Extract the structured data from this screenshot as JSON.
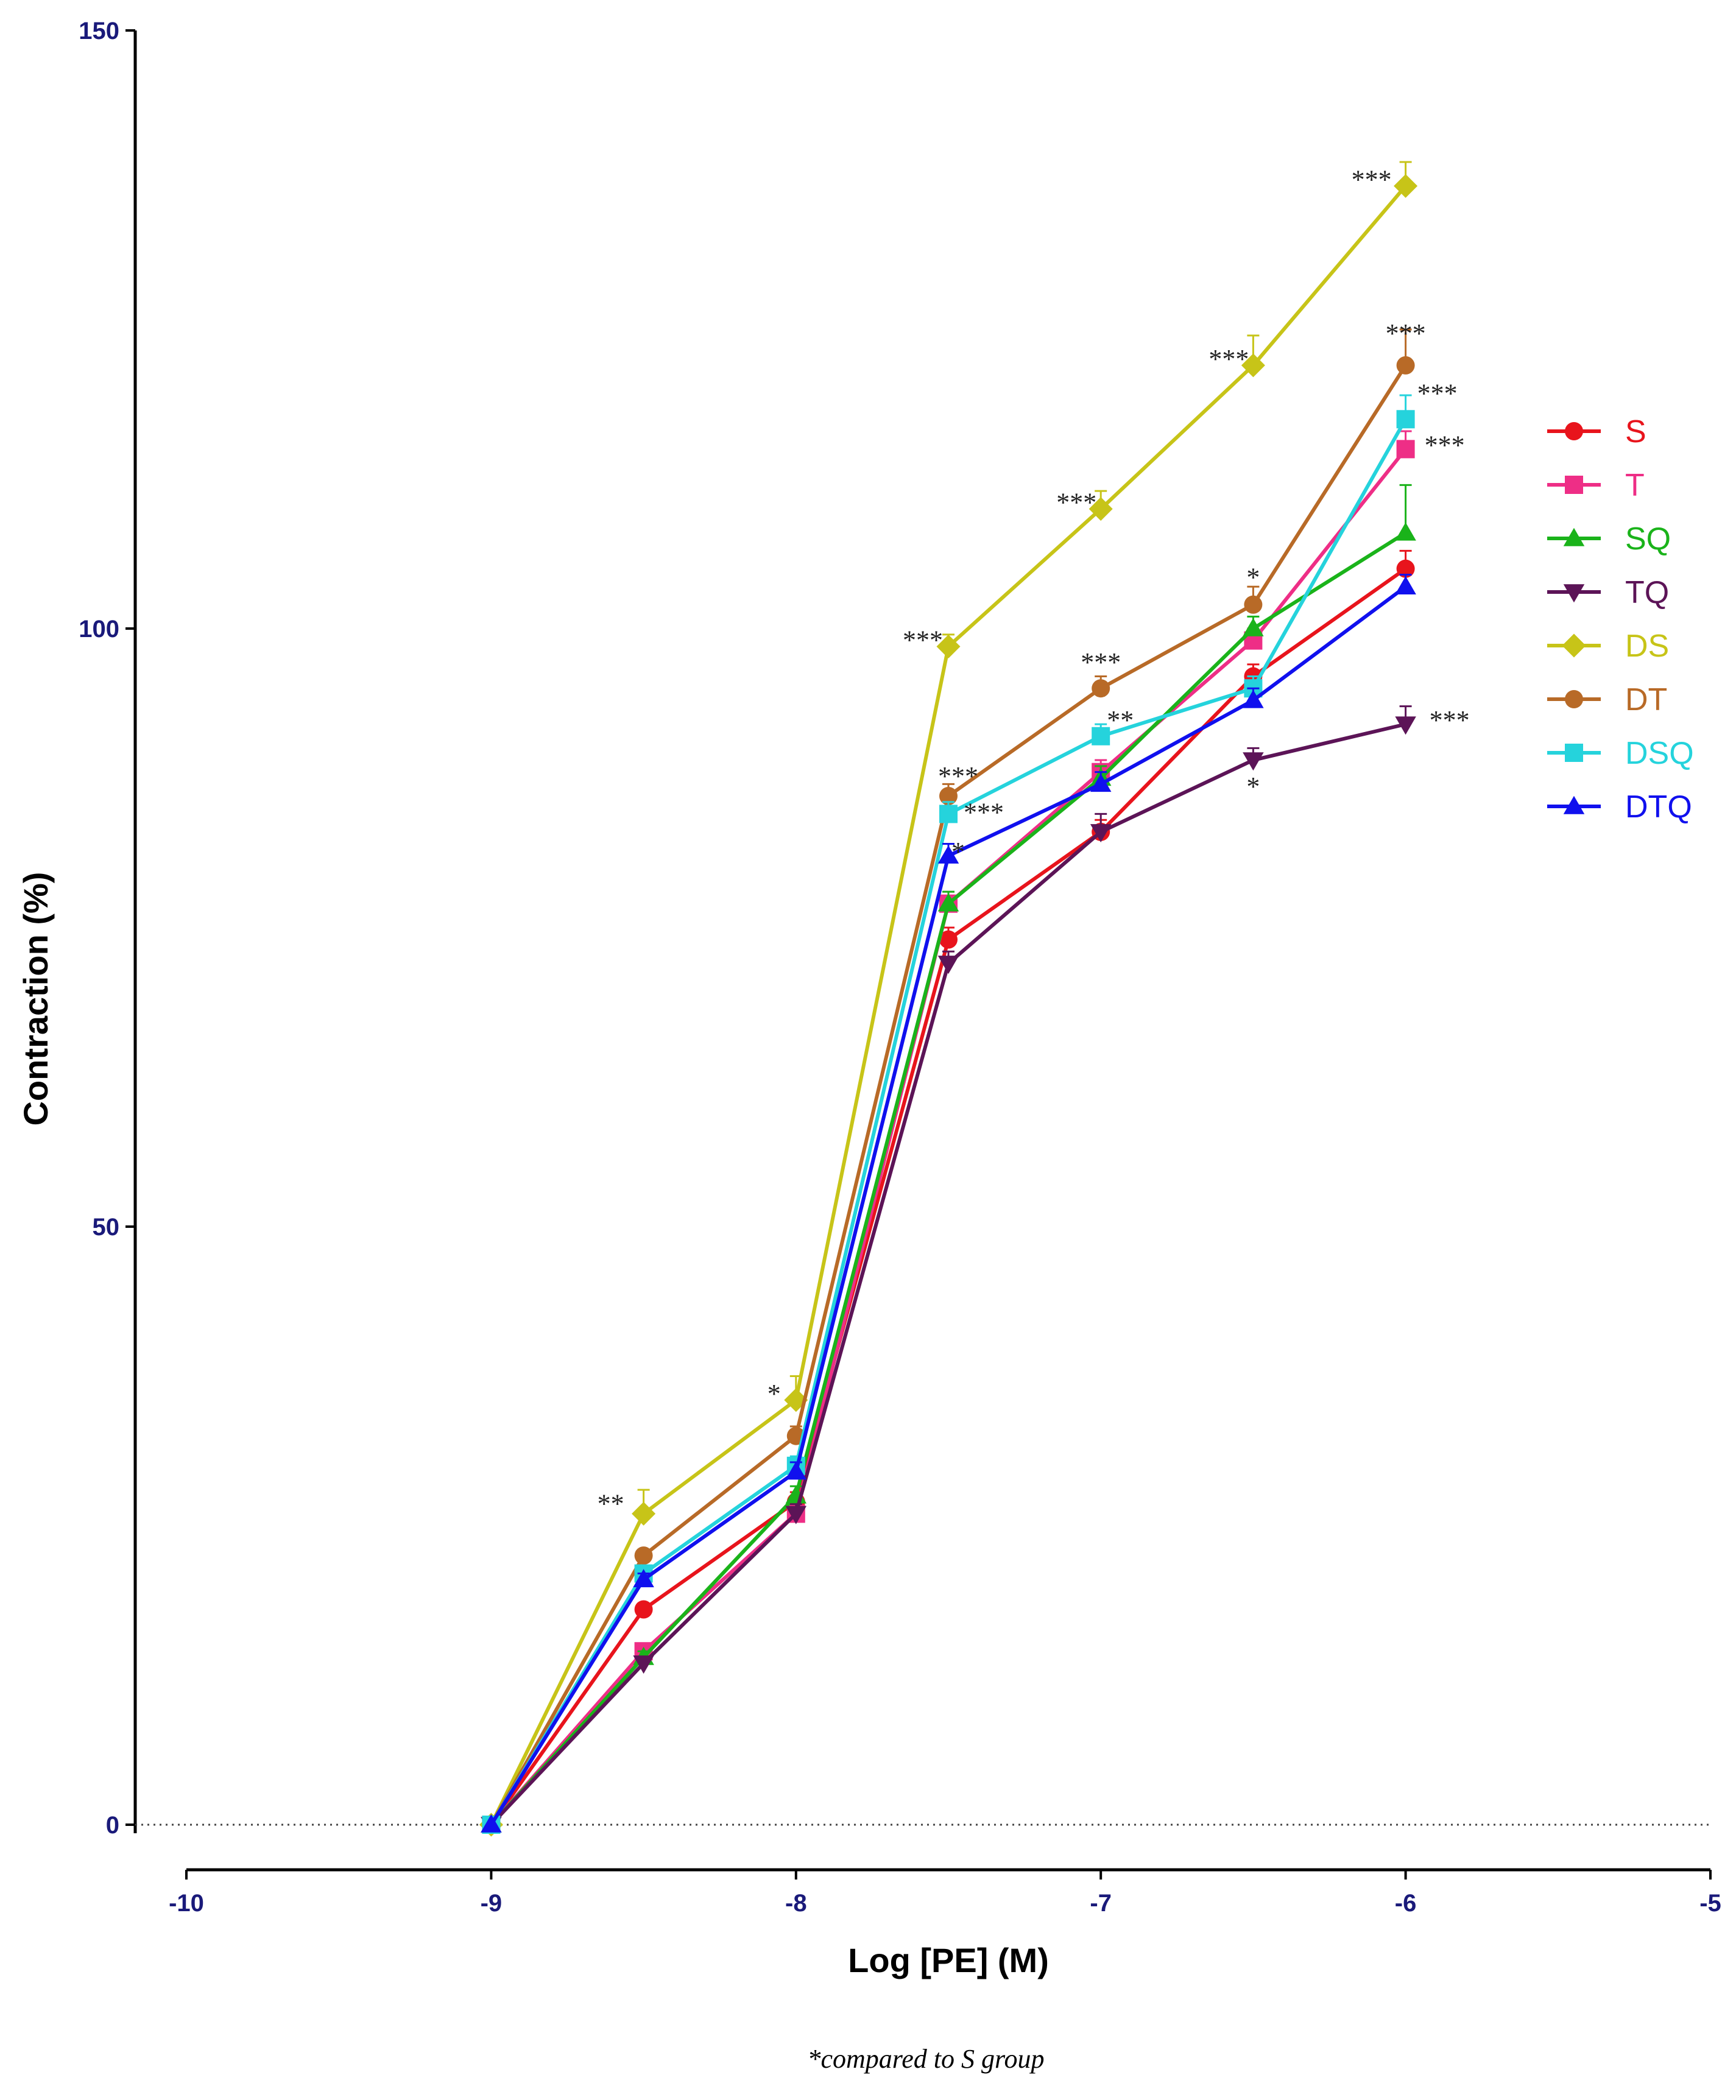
{
  "chart_data": {
    "type": "line",
    "xlabel": "Log [PE] (M)",
    "ylabel": "Contraction (%)",
    "xlim": [
      -10,
      -5
    ],
    "ylim": [
      0,
      150
    ],
    "x_ticks": [
      "-10",
      "-9",
      "-8",
      "-7",
      "-6",
      "-5"
    ],
    "y_ticks": [
      "0",
      "50",
      "100",
      "150"
    ],
    "x": [
      -9,
      -8.5,
      -8,
      -7.5,
      -7,
      -6.5,
      -6
    ],
    "series": [
      {
        "name": "S",
        "color": "#e8141c",
        "marker": "circle",
        "values": [
          0,
          18,
          27,
          74,
          83,
          96,
          105
        ],
        "errors": [
          0,
          0.5,
          0.8,
          1,
          1,
          1,
          1.5
        ]
      },
      {
        "name": "T",
        "color": "#ee2e86",
        "marker": "square",
        "values": [
          0,
          14.5,
          26,
          77,
          88,
          99,
          115
        ],
        "errors": [
          0,
          0.5,
          0.8,
          1,
          1,
          1,
          1.5
        ]
      },
      {
        "name": "SQ",
        "color": "#1ab31a",
        "marker": "triangle-up",
        "values": [
          0,
          14,
          27.5,
          77,
          87.5,
          100,
          108
        ],
        "errors": [
          0,
          0.5,
          0.8,
          1,
          1,
          1,
          4
        ]
      },
      {
        "name": "TQ",
        "color": "#5c1457",
        "marker": "triangle-down",
        "values": [
          0,
          13.5,
          26,
          72,
          83,
          89,
          92
        ],
        "errors": [
          0,
          0.5,
          0.8,
          1,
          1.5,
          1,
          1.5
        ]
      },
      {
        "name": "DS",
        "color": "#c7c418",
        "marker": "diamond",
        "values": [
          0,
          26,
          35.5,
          98.5,
          110,
          122,
          137
        ],
        "errors": [
          0,
          2,
          2,
          1,
          1.5,
          2.5,
          2
        ]
      },
      {
        "name": "DT",
        "color": "#b86a27",
        "marker": "circle",
        "values": [
          0,
          22.5,
          32.5,
          86,
          95,
          102,
          122
        ],
        "errors": [
          0,
          0.5,
          0.8,
          1,
          1,
          1.5,
          3
        ]
      },
      {
        "name": "DSQ",
        "color": "#25d3dc",
        "marker": "square",
        "values": [
          0,
          21,
          30,
          84.5,
          91,
          95,
          117.5
        ],
        "errors": [
          0,
          0.5,
          0.8,
          1,
          1,
          1,
          2
        ]
      },
      {
        "name": "DTQ",
        "color": "#1010ee",
        "marker": "triangle-up",
        "values": [
          0,
          20.5,
          29.5,
          81,
          87,
          94,
          103.5
        ],
        "errors": [
          0,
          0.5,
          0.8,
          1,
          1,
          1,
          1
        ]
      }
    ],
    "annotations": [
      {
        "text": "**",
        "x": -8.5,
        "y": 26
      },
      {
        "text": "*",
        "x": -8,
        "y": 35.5
      },
      {
        "text": "***",
        "x": -7.5,
        "y": 98.5
      },
      {
        "text": "***",
        "x": -7.5,
        "y": 86
      },
      {
        "text": "***",
        "x": -7.5,
        "y": 84.5
      },
      {
        "text": "*",
        "x": -7.5,
        "y": 81
      },
      {
        "text": "***",
        "x": -7,
        "y": 110
      },
      {
        "text": "***",
        "x": -7,
        "y": 95
      },
      {
        "text": "**",
        "x": -7,
        "y": 91
      },
      {
        "text": "***",
        "x": -6.5,
        "y": 122
      },
      {
        "text": "*",
        "x": -6.5,
        "y": 102
      },
      {
        "text": "*",
        "x": -6.5,
        "y": 89
      },
      {
        "text": "***",
        "x": -6,
        "y": 137
      },
      {
        "text": "***",
        "x": -6,
        "y": 122
      },
      {
        "text": "***",
        "x": -6,
        "y": 117.5
      },
      {
        "text": "***",
        "x": -6,
        "y": 115
      },
      {
        "text": "***",
        "x": -6,
        "y": 92
      }
    ],
    "footnote": "*compared to S group",
    "grid": false,
    "legend_position": "right"
  }
}
